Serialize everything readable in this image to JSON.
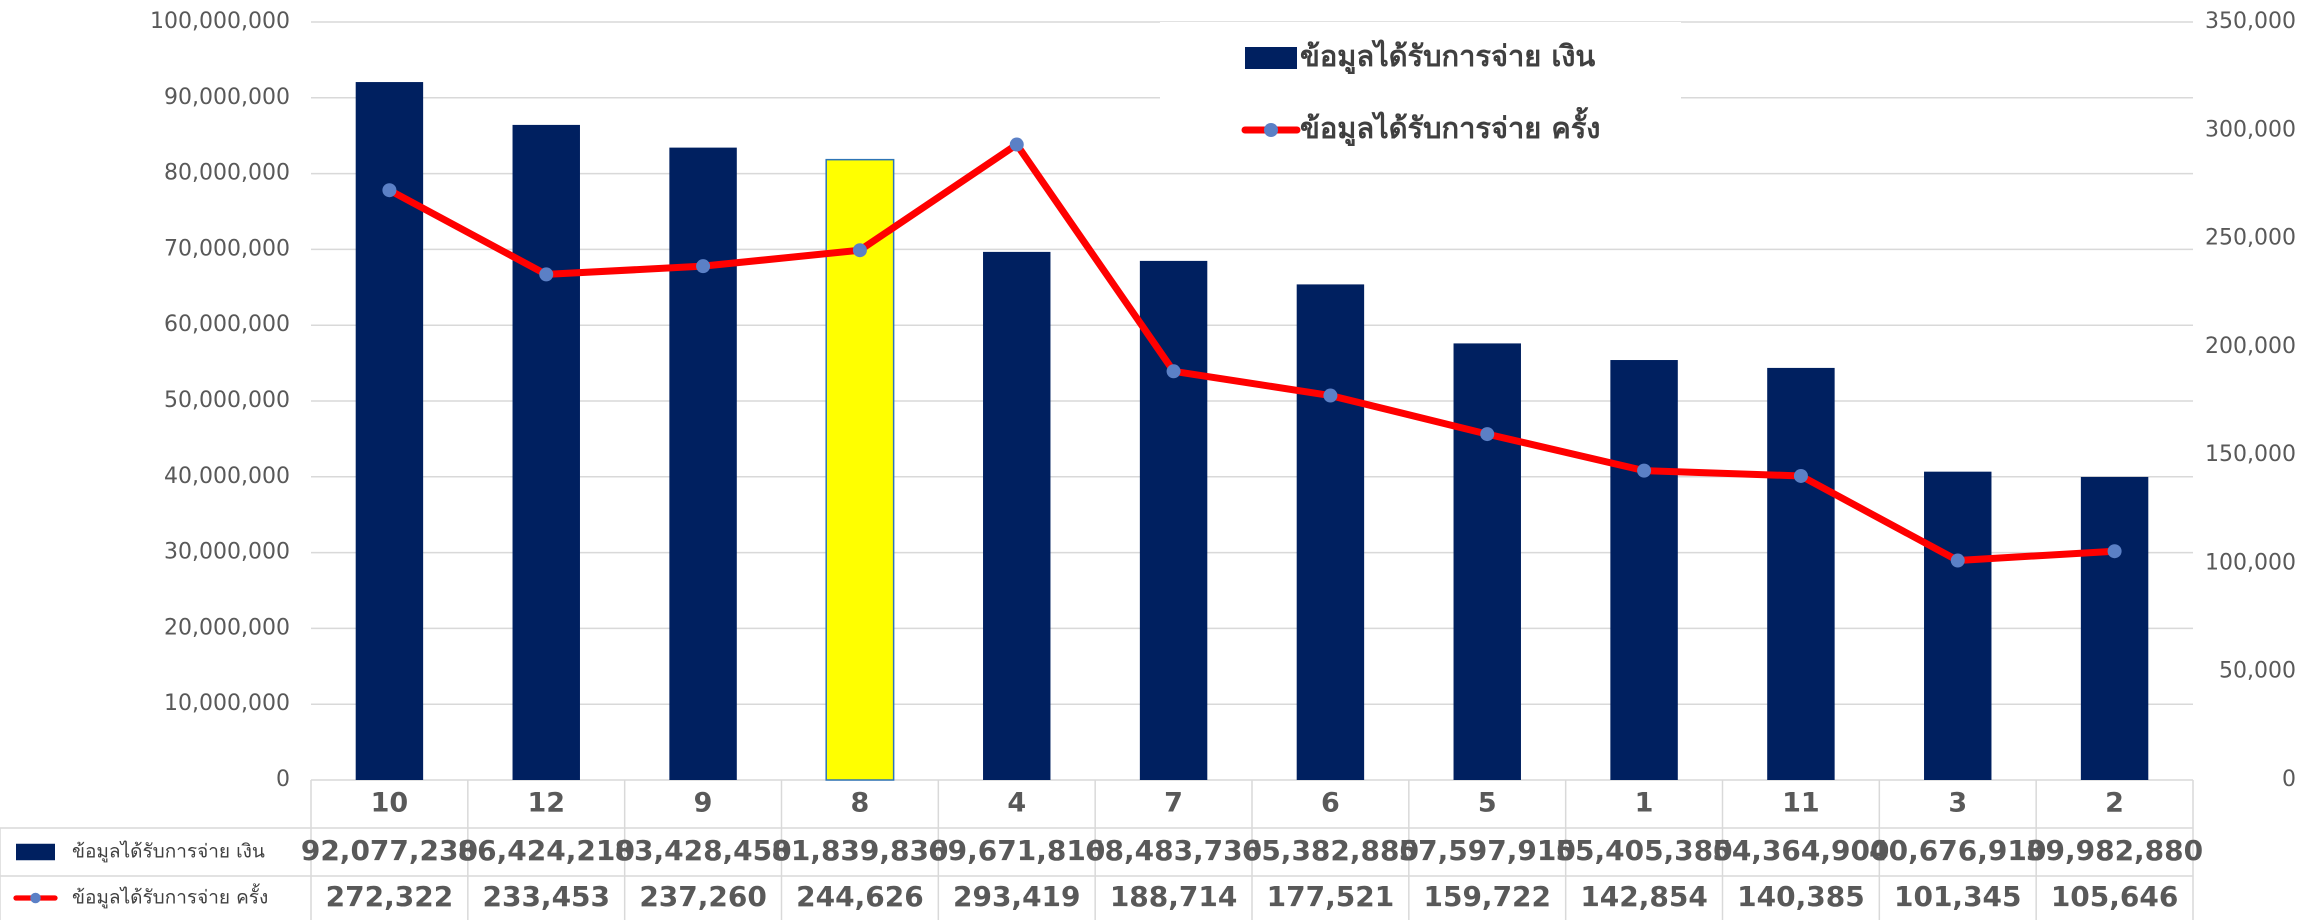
{
  "chart_data": {
    "type": "bar",
    "categories": [
      "10",
      "12",
      "9",
      "8",
      "4",
      "7",
      "6",
      "5",
      "1",
      "11",
      "3",
      "2"
    ],
    "series": [
      {
        "name": "ข้อมูลได้รับการจ่าย เงิน",
        "type": "bar",
        "color": "#002060",
        "colors": [
          "#002060",
          "#002060",
          "#002060",
          "#ffff00",
          "#002060",
          "#002060",
          "#002060",
          "#002060",
          "#002060",
          "#002060",
          "#002060",
          "#002060"
        ],
        "values": [
          92077230,
          86424210,
          83428450,
          81839830,
          69671810,
          68483730,
          65382880,
          57597910,
          55405380,
          54364900,
          40676910,
          39982880
        ],
        "value_labels": [
          "92,077,230",
          "86,424,210",
          "83,428,450",
          "81,839,830",
          "69,671,810",
          "68,483,730",
          "65,382,880",
          "57,597,910",
          "55,405,380",
          "54,364,900",
          "40,676,910",
          "39,982,880"
        ]
      },
      {
        "name": "ข้อมูลได้รับการจ่าย ครั้ง",
        "type": "line",
        "axis": "y2",
        "color": "#ff0000",
        "marker_color": "#5b80c6",
        "values": [
          272322,
          233453,
          237260,
          244626,
          293419,
          188714,
          177521,
          159722,
          142854,
          140385,
          101345,
          105646
        ],
        "value_labels": [
          "272,322",
          "233,453",
          "237,260",
          "244,626",
          "293,419",
          "188,714",
          "177,521",
          "159,722",
          "142,854",
          "140,385",
          "101,345",
          "105,646"
        ]
      }
    ],
    "ylim": [
      0,
      100000000
    ],
    "yticks": [
      0,
      {
        "value": 10000000,
        "label": "10,000,000"
      },
      {
        "value": 20000000,
        "label": "20,000,000"
      },
      {
        "value": 30000000,
        "label": "30,000,000"
      },
      {
        "value": 40000000,
        "label": "40,000,000"
      },
      {
        "value": 50000000,
        "label": "50,000,000"
      },
      {
        "value": 60000000,
        "label": "60,000,000"
      },
      {
        "value": 70000000,
        "label": "70,000,000"
      },
      {
        "value": 80000000,
        "label": "80,000,000"
      },
      {
        "value": 90000000,
        "label": "90,000,000"
      },
      {
        "value": 100000000,
        "label": "100,000,000"
      }
    ],
    "y2lim": [
      0,
      350000
    ],
    "y2ticks": [
      0,
      {
        "value": 50000,
        "label": "50,000"
      },
      {
        "value": 100000,
        "label": "100,000"
      },
      {
        "value": 150000,
        "label": "150,000"
      },
      {
        "value": 200000,
        "label": "200,000"
      },
      {
        "value": 250000,
        "label": "250,000"
      },
      {
        "value": 300000,
        "label": "300,000"
      },
      {
        "value": 350000,
        "label": "350,000"
      }
    ],
    "grid": true,
    "legend": "top",
    "data_table": true
  }
}
